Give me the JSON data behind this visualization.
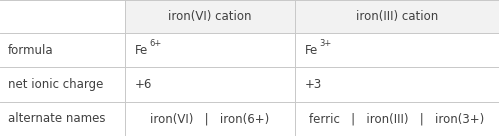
{
  "col_headers": [
    "",
    "iron(VI) cation",
    "iron(III) cation"
  ],
  "rows": [
    {
      "label": "formula",
      "col1_text": "Fe",
      "col1_sup": "6+",
      "col2_text": "Fe",
      "col2_sup": "3+"
    },
    {
      "label": "net ionic charge",
      "col1": "+6",
      "col2": "+3"
    },
    {
      "label": "alternate names",
      "col1_parts": [
        "iron(VI)",
        "|",
        "iron(6+)"
      ],
      "col2_parts": [
        "ferric",
        "|",
        "iron(III)",
        "|",
        "iron(3+)"
      ]
    }
  ],
  "bg_color": "#ffffff",
  "header_bg": "#f2f2f2",
  "border_color": "#c8c8c8",
  "text_color": "#404040",
  "font_size": 8.5
}
